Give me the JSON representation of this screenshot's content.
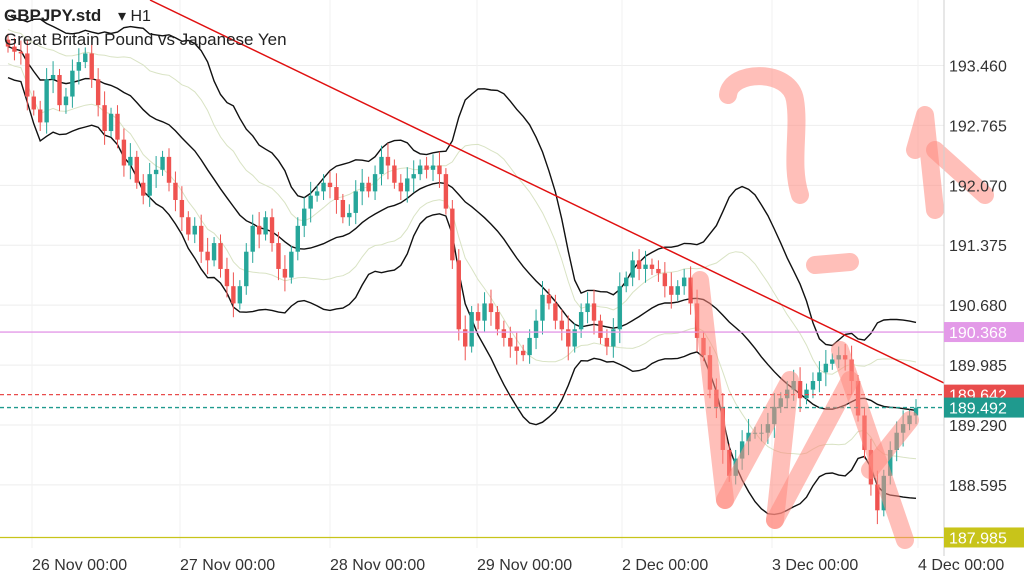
{
  "header": {
    "symbol": "GBPJPY.std",
    "timeframe": "H1",
    "description": "Great Britain Pound vs Japanese Yen"
  },
  "chart_data": {
    "type": "candlestick",
    "price_range": [
      187.77,
      194.22
    ],
    "y_ticks": [
      "193.460",
      "192.765",
      "192.070",
      "191.375",
      "190.680",
      "189.985",
      "189.290",
      "188.595"
    ],
    "x_ticks": [
      "26 Nov 00:00",
      "27 Nov 00:00",
      "28 Nov 00:00",
      "29 Nov 00:00",
      "2 Dec 00:00",
      "3 Dec 00:00",
      "4 Dec 00:00"
    ],
    "price_tags": [
      {
        "label": "190.368",
        "value": 190.368,
        "color": "#e39ae8",
        "text_color": "#ffffff",
        "line": "solid"
      },
      {
        "label": "189.642",
        "value": 189.642,
        "color": "#e84c4c",
        "text_color": "#ffffff",
        "line": "dashed"
      },
      {
        "label": "189.492",
        "value": 189.492,
        "color": "#1f9a8e",
        "text_color": "#ffffff",
        "line": "dashed"
      },
      {
        "label": "187.985",
        "value": 187.985,
        "color": "#c8c41a",
        "text_color": "#ffffff",
        "line": "solid"
      }
    ],
    "colors": {
      "bull": "#26a69a",
      "bear": "#ef5350",
      "band": "#111111",
      "inner_band": "#d9e3c4",
      "trendline": "#e01010",
      "annotation": "#ff8a80"
    },
    "closes": [
      193.68,
      193.62,
      193.6,
      193.1,
      192.95,
      192.8,
      193.3,
      193.35,
      193.0,
      193.1,
      193.4,
      193.5,
      193.6,
      193.3,
      193.0,
      192.7,
      192.9,
      192.6,
      192.3,
      192.4,
      192.1,
      191.95,
      192.2,
      192.25,
      192.4,
      192.1,
      191.9,
      191.7,
      191.5,
      191.6,
      191.3,
      191.2,
      191.4,
      191.1,
      190.9,
      190.7,
      190.9,
      191.3,
      191.6,
      191.5,
      191.7,
      191.4,
      191.1,
      191.0,
      191.3,
      191.6,
      191.8,
      191.95,
      192.0,
      192.1,
      192.05,
      191.9,
      191.7,
      191.75,
      192.0,
      192.1,
      192.0,
      192.2,
      192.4,
      192.3,
      192.1,
      192.0,
      192.15,
      192.2,
      192.3,
      192.25,
      192.3,
      192.2,
      191.8,
      191.2,
      190.4,
      190.2,
      190.6,
      190.5,
      190.7,
      190.6,
      190.4,
      190.3,
      190.2,
      190.15,
      190.1,
      190.3,
      190.5,
      190.8,
      190.7,
      190.5,
      190.4,
      190.2,
      190.4,
      190.6,
      190.7,
      190.5,
      190.3,
      190.2,
      190.4,
      190.9,
      191.0,
      191.2,
      191.1,
      191.15,
      191.1,
      191.05,
      190.9,
      190.8,
      190.9,
      191.0,
      190.7,
      190.3,
      190.1,
      189.7,
      189.5,
      189.0,
      188.7,
      188.9,
      189.1,
      189.2,
      189.2,
      189.2,
      189.3,
      189.5,
      189.6,
      189.7,
      189.8,
      189.6,
      189.7,
      189.8,
      189.9,
      190.0,
      190.05,
      190.1,
      190.05,
      189.8,
      189.4,
      189.0,
      188.6,
      188.3,
      188.7,
      189.0,
      189.2,
      189.3,
      189.4,
      189.49
    ]
  }
}
